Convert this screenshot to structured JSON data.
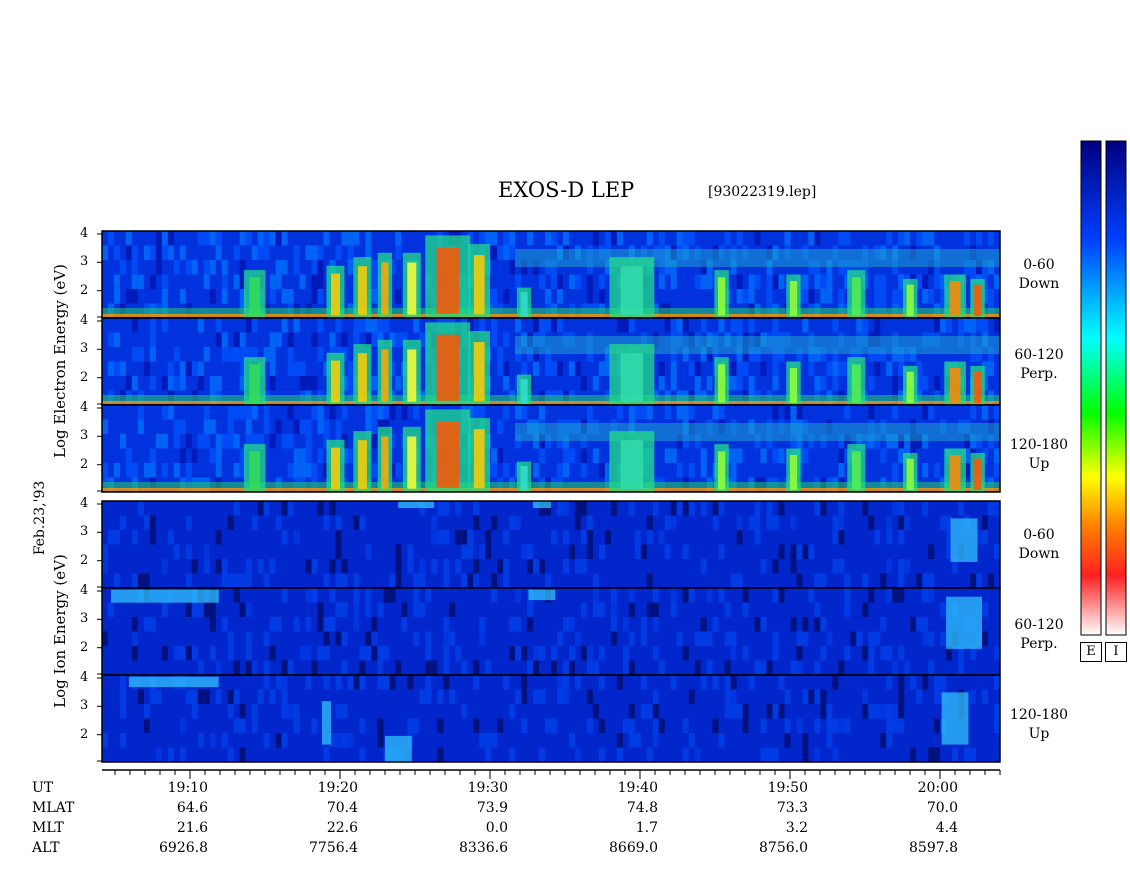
{
  "chart_data": {
    "type": "heatmap",
    "title": "EXOS-D LEP",
    "subtitle": "[93022319.lep]",
    "date_label": "Feb.23,'93",
    "groups": [
      {
        "name": "electron",
        "ylabel": "Log   Electron   Energy (eV)",
        "panels": [
          {
            "label_line1": "0-60",
            "label_line2": "Down"
          },
          {
            "label_line1": "60-120",
            "label_line2": "Perp."
          },
          {
            "label_line1": "120-180",
            "label_line2": "Up"
          }
        ]
      },
      {
        "name": "ion",
        "ylabel": "Log   Ion   Energy (eV)",
        "panels": [
          {
            "label_line1": "0-60",
            "label_line2": "Down"
          },
          {
            "label_line1": "60-120",
            "label_line2": "Perp."
          },
          {
            "label_line1": "120-180",
            "label_line2": "Up"
          }
        ]
      }
    ],
    "y_ticks": [
      "4",
      "3",
      "2"
    ],
    "ylim": [
      1,
      4
    ],
    "x_ticks": [
      "19:10",
      "19:20",
      "19:30",
      "19:40",
      "19:50",
      "20:00"
    ],
    "colorbar_labels": [
      "E",
      "I"
    ],
    "colormap": [
      "#ffffff",
      "#ff0000",
      "#ffff00",
      "#00ff00",
      "#00ffff",
      "#0000ff",
      "#000080"
    ],
    "axis_rows": [
      {
        "label": "UT",
        "values": [
          "19:10",
          "19:20",
          "19:30",
          "19:40",
          "19:50",
          "20:00"
        ]
      },
      {
        "label": "MLAT",
        "values": [
          "64.6",
          "70.4",
          "73.9",
          "74.8",
          "73.3",
          "70.0"
        ]
      },
      {
        "label": "MLT",
        "values": [
          "21.6",
          "22.6",
          "0.0",
          "1.7",
          "3.2",
          "4.4"
        ]
      },
      {
        "label": "ALT",
        "values": [
          "6926.8",
          "7756.4",
          "8336.6",
          "8669.0",
          "8756.0",
          "8597.8"
        ]
      }
    ]
  }
}
